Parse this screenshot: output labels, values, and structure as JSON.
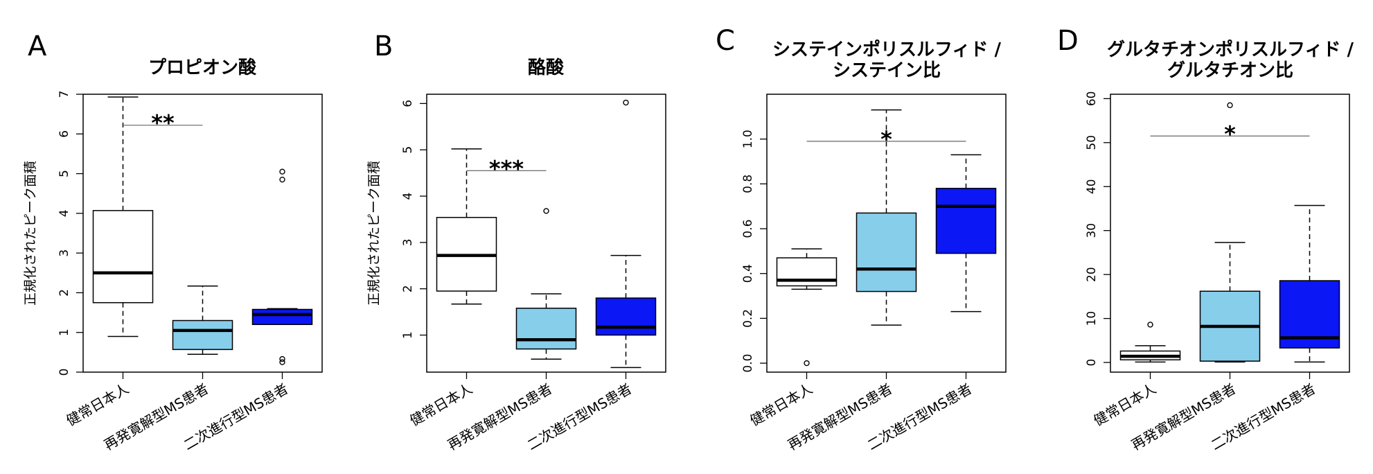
{
  "colors": {
    "healthy": "#ffffff",
    "rrms": "#87ceeb",
    "spms": "#0b17f5",
    "line": "#000000",
    "sigline": "#666666"
  },
  "chart_data": [
    {
      "type": "boxplot",
      "panel": "A",
      "title": [
        "プロピオン酸"
      ],
      "ylabel": "正規化されたピーク面積",
      "categories": [
        "健常日本人",
        "再発寛解型MS患者",
        "二次進行型MS患者"
      ],
      "ylim": [
        0,
        7
      ],
      "yticks": [
        0,
        1,
        2,
        3,
        4,
        5,
        6,
        7
      ],
      "boxes": [
        {
          "min": 0.9,
          "q1": 1.75,
          "median": 2.5,
          "q3": 4.07,
          "max": 6.93,
          "outliers": []
        },
        {
          "min": 0.45,
          "q1": 0.57,
          "median": 1.05,
          "q3": 1.3,
          "max": 2.17,
          "outliers": []
        },
        {
          "min": 1.2,
          "q1": 1.2,
          "median": 1.45,
          "q3": 1.58,
          "max": 1.6,
          "outliers": [
            0.25,
            0.33,
            4.85,
            5.05
          ]
        }
      ],
      "significance": {
        "from": 0,
        "to": 1,
        "y": 6.22,
        "label": "**"
      }
    },
    {
      "type": "boxplot",
      "panel": "B",
      "title": [
        "酪酸"
      ],
      "ylabel": "正規化されたピーク面積",
      "categories": [
        "健常日本人",
        "再発寛解型MS患者",
        "二次進行型MS患者"
      ],
      "ylim": [
        0.2,
        6.2
      ],
      "yticks": [
        1,
        2,
        3,
        4,
        5,
        6
      ],
      "boxes": [
        {
          "min": 1.67,
          "q1": 1.95,
          "median": 2.72,
          "q3": 3.54,
          "max": 5.02,
          "outliers": []
        },
        {
          "min": 0.48,
          "q1": 0.7,
          "median": 0.9,
          "q3": 1.58,
          "max": 1.89,
          "outliers": [
            3.68
          ]
        },
        {
          "min": 0.3,
          "q1": 1.0,
          "median": 1.17,
          "q3": 1.8,
          "max": 2.72,
          "outliers": [
            6.02
          ]
        }
      ],
      "significance": {
        "from": 0,
        "to": 1,
        "y": 4.55,
        "label": "***"
      }
    },
    {
      "type": "boxplot",
      "panel": "C",
      "title": [
        "システインポリスルフィド /",
        "システイン比"
      ],
      "ylabel": "",
      "categories": [
        "健常日本人",
        "再発寛解型MS患者",
        "二次進行型MS患者"
      ],
      "ylim": [
        -0.04,
        1.2
      ],
      "yticks": [
        0.0,
        0.2,
        0.4,
        0.6,
        0.8,
        1.0
      ],
      "boxes": [
        {
          "min": 0.33,
          "q1": 0.345,
          "median": 0.37,
          "q3": 0.47,
          "max": 0.51,
          "outliers": [
            0.0
          ]
        },
        {
          "min": 0.17,
          "q1": 0.32,
          "median": 0.42,
          "q3": 0.67,
          "max": 1.13,
          "outliers": []
        },
        {
          "min": 0.23,
          "q1": 0.49,
          "median": 0.7,
          "q3": 0.78,
          "max": 0.93,
          "outliers": []
        }
      ],
      "significance": {
        "from": 0,
        "to": 2,
        "y": 0.99,
        "label": "*"
      }
    },
    {
      "type": "boxplot",
      "panel": "D",
      "title": [
        "グルタチオンポリスルフィド /",
        "グルタチオン比"
      ],
      "ylabel": "",
      "categories": [
        "健常日本人",
        "再発寛解型MS患者",
        "二次進行型MS患者"
      ],
      "ylim": [
        -2.2,
        61
      ],
      "yticks": [
        0,
        10,
        20,
        30,
        40,
        50,
        60
      ],
      "boxes": [
        {
          "min": 0.1,
          "q1": 0.6,
          "median": 1.4,
          "q3": 2.6,
          "max": 3.8,
          "outliers": [
            8.6
          ]
        },
        {
          "min": 0.1,
          "q1": 0.3,
          "median": 8.2,
          "q3": 16.2,
          "max": 27.3,
          "outliers": [
            58.5
          ]
        },
        {
          "min": 0.1,
          "q1": 3.3,
          "median": 5.6,
          "q3": 18.6,
          "max": 35.7,
          "outliers": []
        }
      ],
      "significance": {
        "from": 0,
        "to": 2,
        "y": 51.5,
        "label": "*"
      }
    }
  ]
}
